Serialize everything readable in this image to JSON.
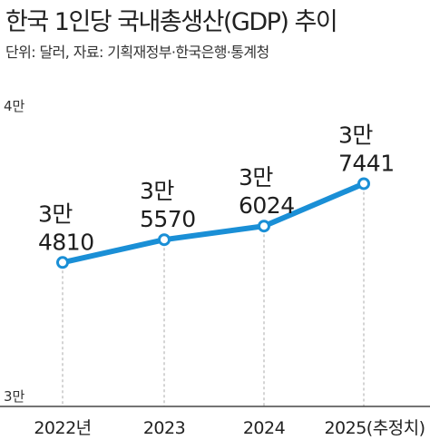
{
  "header": {
    "title": "한국 1인당 국내총생산(GDP) 추이",
    "subtitle": "단위: 달러, 자료: 기획재정부·한국은행·통계청"
  },
  "chart_data": {
    "type": "line",
    "title": "한국 1인당 국내총생산(GDP) 추이",
    "unit": "달러",
    "categories": [
      "2022년",
      "2023",
      "2024",
      "2025(추정치)"
    ],
    "values": [
      34810,
      35570,
      36024,
      37441
    ],
    "data_labels": [
      [
        "3만",
        "4810"
      ],
      [
        "3만",
        "5570"
      ],
      [
        "3만",
        "6024"
      ],
      [
        "3만",
        "7441"
      ]
    ],
    "y_ticks": [
      {
        "value": 40000,
        "label": "4만"
      },
      {
        "value": 30000,
        "label": "3만"
      }
    ],
    "ylim": [
      30000,
      40000
    ],
    "grid": false,
    "colors": {
      "line": "#1a8fd6",
      "marker_fill": "#ffffff",
      "guide": "#aaaaaa",
      "axis": "#222222"
    }
  }
}
